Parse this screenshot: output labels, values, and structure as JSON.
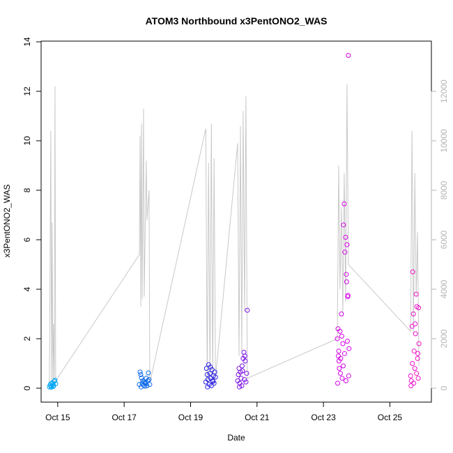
{
  "chart_data": {
    "type": "scatter",
    "title": "ATOM3 Northbound x3PentONO2_WAS",
    "xlabel": "Date",
    "ylabel": "x3PentONO2_WAS",
    "xlim": [
      "2016-10-14T12:00",
      "2016-10-26T06:00"
    ],
    "ylim": [
      0,
      14
    ],
    "y2lim": [
      0,
      14000
    ],
    "x_ticks": [
      {
        "date": "2016-10-15",
        "label": "Oct 15"
      },
      {
        "date": "2016-10-17",
        "label": "Oct 17"
      },
      {
        "date": "2016-10-19",
        "label": "Oct 19"
      },
      {
        "date": "2016-10-21",
        "label": "Oct 21"
      },
      {
        "date": "2016-10-23",
        "label": "Oct 23"
      },
      {
        "date": "2016-10-25",
        "label": "Oct 25"
      }
    ],
    "y_ticks": [
      "0",
      "2",
      "4",
      "6",
      "8",
      "10",
      "12",
      "14"
    ],
    "y2_ticks": [
      "0",
      "2000",
      "4000",
      "6000",
      "8000",
      "10000",
      "12000"
    ],
    "grid": false,
    "legend": "none",
    "line_color": "#c8c8c8",
    "line_series": {
      "axis": "right",
      "points": [
        [
          "2016-10-14T18:00",
          200
        ],
        [
          "2016-10-14T19:00",
          10400
        ],
        [
          "2016-10-14T19:30",
          300
        ],
        [
          "2016-10-14T20:00",
          6700
        ],
        [
          "2016-10-14T20:30",
          200
        ],
        [
          "2016-10-14T21:00",
          2600
        ],
        [
          "2016-10-14T21:30",
          300
        ],
        [
          "2016-10-14T22:00",
          12200
        ],
        [
          "2016-10-14T22:30",
          300
        ],
        [
          "2016-10-17T11:00",
          5400
        ],
        [
          "2016-10-17T11:30",
          10200
        ],
        [
          "2016-10-17T12:00",
          3300
        ],
        [
          "2016-10-17T12:30",
          10700
        ],
        [
          "2016-10-17T13:00",
          3600
        ],
        [
          "2016-10-17T14:00",
          11300
        ],
        [
          "2016-10-17T14:30",
          3700
        ],
        [
          "2016-10-17T16:00",
          9200
        ],
        [
          "2016-10-17T16:30",
          6800
        ],
        [
          "2016-10-17T18:00",
          8000
        ],
        [
          "2016-10-17T18:30",
          200
        ],
        [
          "2016-10-19T11:00",
          10500
        ],
        [
          "2016-10-19T12:00",
          200
        ],
        [
          "2016-10-19T13:00",
          9100
        ],
        [
          "2016-10-19T14:00",
          300
        ],
        [
          "2016-10-19T15:00",
          10700
        ],
        [
          "2016-10-19T16:00",
          300
        ],
        [
          "2016-10-19T17:00",
          9300
        ],
        [
          "2016-10-19T18:00",
          400
        ],
        [
          "2016-10-20T10:00",
          9900
        ],
        [
          "2016-10-20T11:00",
          1300
        ],
        [
          "2016-10-20T12:00",
          10600
        ],
        [
          "2016-10-20T13:00",
          1500
        ],
        [
          "2016-10-20T14:00",
          11200
        ],
        [
          "2016-10-20T15:00",
          3100
        ],
        [
          "2016-10-20T16:00",
          11800
        ],
        [
          "2016-10-20T17:00",
          400
        ],
        [
          "2016-10-23T10:00",
          2000
        ],
        [
          "2016-10-23T11:00",
          9000
        ],
        [
          "2016-10-23T12:00",
          4000
        ],
        [
          "2016-10-23T13:00",
          7300
        ],
        [
          "2016-10-23T14:00",
          3000
        ],
        [
          "2016-10-23T15:00",
          8700
        ],
        [
          "2016-10-23T16:00",
          3500
        ],
        [
          "2016-10-23T17:00",
          12300
        ],
        [
          "2016-10-23T18:00",
          5000
        ],
        [
          "2016-10-25T15:00",
          2300
        ],
        [
          "2016-10-25T16:00",
          10400
        ],
        [
          "2016-10-25T17:00",
          2200
        ],
        [
          "2016-10-25T18:00",
          8700
        ],
        [
          "2016-10-25T19:00",
          3700
        ],
        [
          "2016-10-25T20:00",
          6300
        ],
        [
          "2016-10-25T21:00",
          900
        ]
      ]
    },
    "series": [
      {
        "color": "#00a5f5",
        "points": [
          [
            "2016-10-14T18:00",
            0.05
          ],
          [
            "2016-10-14T18:30",
            0.12
          ],
          [
            "2016-10-14T19:00",
            0.18
          ],
          [
            "2016-10-14T19:30",
            0.08
          ],
          [
            "2016-10-14T20:00",
            0.22
          ],
          [
            "2016-10-14T20:30",
            0.15
          ],
          [
            "2016-10-14T21:00",
            0.1
          ],
          [
            "2016-10-14T21:30",
            0.28
          ],
          [
            "2016-10-14T22:00",
            0.32
          ],
          [
            "2016-10-14T22:30",
            0.18
          ],
          [
            "2016-10-14T19:15",
            0.04
          ],
          [
            "2016-10-14T20:45",
            0.07
          ]
        ]
      },
      {
        "color": "#0a68ea",
        "points": [
          [
            "2016-10-17T11:00",
            0.15
          ],
          [
            "2016-10-17T11:30",
            0.65
          ],
          [
            "2016-10-17T12:00",
            0.55
          ],
          [
            "2016-10-17T12:30",
            0.42
          ],
          [
            "2016-10-17T13:00",
            0.2
          ],
          [
            "2016-10-17T13:30",
            0.3
          ],
          [
            "2016-10-17T14:00",
            0.12
          ],
          [
            "2016-10-17T14:30",
            0.25
          ],
          [
            "2016-10-17T15:00",
            0.08
          ],
          [
            "2016-10-17T15:30",
            0.18
          ],
          [
            "2016-10-17T16:00",
            0.4
          ],
          [
            "2016-10-17T16:30",
            0.1
          ],
          [
            "2016-10-17T17:00",
            0.3
          ],
          [
            "2016-10-17T17:30",
            0.62
          ],
          [
            "2016-10-17T18:00",
            0.35
          ],
          [
            "2016-10-17T18:30",
            0.15
          ],
          [
            "2016-10-17T12:15",
            0.05
          ],
          [
            "2016-10-17T15:15",
            0.22
          ]
        ]
      },
      {
        "color": "#2a1fe0",
        "points": [
          [
            "2016-10-19T11:00",
            0.25
          ],
          [
            "2016-10-19T11:30",
            0.8
          ],
          [
            "2016-10-19T12:00",
            0.55
          ],
          [
            "2016-10-19T12:30",
            0.35
          ],
          [
            "2016-10-19T13:00",
            0.95
          ],
          [
            "2016-10-19T13:30",
            0.15
          ],
          [
            "2016-10-19T14:00",
            0.6
          ],
          [
            "2016-10-19T14:30",
            0.4
          ],
          [
            "2016-10-19T15:00",
            0.1
          ],
          [
            "2016-10-19T15:30",
            0.75
          ],
          [
            "2016-10-19T16:00",
            0.3
          ],
          [
            "2016-10-19T16:30",
            0.5
          ],
          [
            "2016-10-19T17:00",
            0.2
          ],
          [
            "2016-10-19T17:30",
            0.65
          ],
          [
            "2016-10-19T18:00",
            0.45
          ],
          [
            "2016-10-19T12:15",
            0.05
          ],
          [
            "2016-10-19T14:15",
            0.85
          ],
          [
            "2016-10-19T16:15",
            0.28
          ]
        ]
      },
      {
        "color": "#7a10e6",
        "points": [
          [
            "2016-10-20T10:00",
            0.3
          ],
          [
            "2016-10-20T10:30",
            0.55
          ],
          [
            "2016-10-20T11:00",
            0.8
          ],
          [
            "2016-10-20T11:30",
            0.2
          ],
          [
            "2016-10-20T12:00",
            0.65
          ],
          [
            "2016-10-20T12:30",
            0.4
          ],
          [
            "2016-10-20T13:00",
            0.1
          ],
          [
            "2016-10-20T13:30",
            0.7
          ],
          [
            "2016-10-20T14:00",
            1.2
          ],
          [
            "2016-10-20T14:30",
            1.45
          ],
          [
            "2016-10-20T15:00",
            0.35
          ],
          [
            "2016-10-20T15:30",
            1.1
          ],
          [
            "2016-10-20T16:00",
            0.25
          ],
          [
            "2016-10-20T16:30",
            0.6
          ],
          [
            "2016-10-20T17:00",
            3.15
          ],
          [
            "2016-10-20T11:15",
            0.05
          ],
          [
            "2016-10-20T13:15",
            0.9
          ],
          [
            "2016-10-20T15:15",
            1.3
          ]
        ]
      },
      {
        "color": "#d400e6",
        "points": [
          [
            "2016-10-23T10:00",
            2.0
          ],
          [
            "2016-10-23T10:30",
            2.4
          ],
          [
            "2016-10-23T11:00",
            1.5
          ],
          [
            "2016-10-23T11:30",
            0.8
          ],
          [
            "2016-10-23T12:00",
            2.3
          ],
          [
            "2016-10-23T12:30",
            1.2
          ],
          [
            "2016-10-23T13:00",
            3.0
          ],
          [
            "2016-10-23T13:30",
            0.4
          ],
          [
            "2016-10-23T14:00",
            1.8
          ],
          [
            "2016-10-23T14:30",
            6.6
          ],
          [
            "2016-10-23T15:00",
            7.45
          ],
          [
            "2016-10-23T15:30",
            5.5
          ],
          [
            "2016-10-23T16:00",
            6.1
          ],
          [
            "2016-10-23T16:30",
            4.6
          ],
          [
            "2016-10-23T17:00",
            5.8
          ],
          [
            "2016-10-23T17:30",
            3.7
          ],
          [
            "2016-10-23T18:00",
            13.45
          ],
          [
            "2016-10-23T18:30",
            1.6
          ],
          [
            "2016-10-23T10:15",
            0.2
          ],
          [
            "2016-10-23T11:15",
            1.1
          ],
          [
            "2016-10-23T12:15",
            0.6
          ],
          [
            "2016-10-23T13:15",
            2.1
          ],
          [
            "2016-10-23T14:15",
            0.9
          ],
          [
            "2016-10-23T15:15",
            1.4
          ],
          [
            "2016-10-23T16:15",
            0.3
          ],
          [
            "2016-10-23T17:15",
            1.9
          ],
          [
            "2016-10-23T18:15",
            0.5
          ],
          [
            "2016-10-23T10:45",
            1.3
          ],
          [
            "2016-10-23T16:45",
            4.3
          ],
          [
            "2016-10-23T17:45",
            3.75
          ]
        ]
      },
      {
        "color": "#f010c8",
        "points": [
          [
            "2016-10-25T15:00",
            0.5
          ],
          [
            "2016-10-25T15:30",
            0.3
          ],
          [
            "2016-10-25T16:00",
            2.5
          ],
          [
            "2016-10-25T16:30",
            4.7
          ],
          [
            "2016-10-25T17:00",
            3.0
          ],
          [
            "2016-10-25T17:30",
            1.5
          ],
          [
            "2016-10-25T18:00",
            0.8
          ],
          [
            "2016-10-25T18:30",
            2.2
          ],
          [
            "2016-10-25T19:00",
            3.8
          ],
          [
            "2016-10-25T19:30",
            3.3
          ],
          [
            "2016-10-25T20:00",
            1.2
          ],
          [
            "2016-10-25T20:30",
            0.4
          ],
          [
            "2016-10-25T21:00",
            1.8
          ],
          [
            "2016-10-25T15:15",
            0.1
          ],
          [
            "2016-10-25T16:15",
            1.0
          ],
          [
            "2016-10-25T17:15",
            0.2
          ],
          [
            "2016-10-25T18:15",
            2.6
          ],
          [
            "2016-10-25T19:15",
            0.6
          ],
          [
            "2016-10-25T20:15",
            1.4
          ],
          [
            "2016-10-25T20:45",
            3.25
          ]
        ]
      }
    ]
  }
}
